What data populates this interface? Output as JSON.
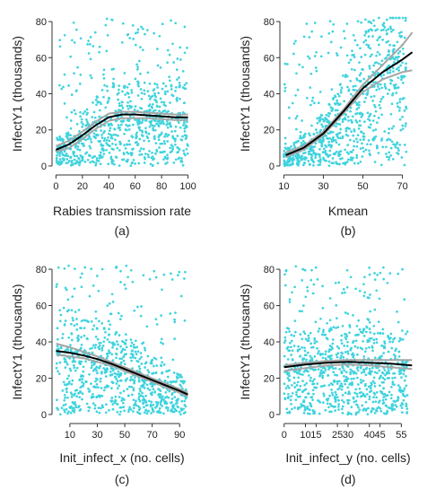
{
  "colors": {
    "points": "#3fd3de",
    "fit": "#000000",
    "confidence_band": "#a6a6a6",
    "axis": "#333333"
  },
  "chart_data": [
    {
      "type": "scatter",
      "panel": "(a)",
      "xlabel": "Rabies transmission rate",
      "ylabel": "InfectY1 (thousands)",
      "xlim": [
        -3,
        103
      ],
      "ylim": [
        -3,
        83
      ],
      "xticks": [
        0,
        20,
        40,
        60,
        80,
        100
      ],
      "yticks": [
        0,
        20,
        40,
        60,
        80
      ],
      "point_count": 900,
      "points_x_range": [
        0,
        100
      ],
      "fit_line": {
        "x": [
          0,
          10,
          20,
          30,
          40,
          50,
          60,
          70,
          80,
          90,
          100
        ],
        "y": [
          9,
          12,
          17,
          22.5,
          27,
          28.5,
          28.5,
          28,
          27.5,
          27,
          27
        ]
      },
      "band_upper": {
        "x": [
          0,
          10,
          20,
          30,
          40,
          50,
          60,
          70,
          80,
          90,
          100
        ],
        "y": [
          11,
          14,
          19,
          24.5,
          29,
          30,
          30,
          29.5,
          29,
          28.5,
          28.5
        ]
      },
      "band_lower": {
        "x": [
          0,
          10,
          20,
          30,
          40,
          50,
          60,
          70,
          80,
          90,
          100
        ],
        "y": [
          8,
          10,
          15,
          20.5,
          25,
          26.5,
          26.5,
          26.5,
          26,
          25.5,
          25.5
        ]
      }
    },
    {
      "type": "scatter",
      "panel": "(b)",
      "xlabel": "Kmean",
      "ylabel": "InfectY1 (thousands)",
      "xlim": [
        8,
        77
      ],
      "ylim": [
        -3,
        83
      ],
      "xticks": [
        10,
        30,
        50,
        70
      ],
      "yticks": [
        0,
        20,
        40,
        60,
        80
      ],
      "point_count": 900,
      "points_x_range": [
        10,
        72
      ],
      "fit_line": {
        "x": [
          11,
          20,
          30,
          40,
          50,
          60,
          70,
          75
        ],
        "y": [
          6,
          10,
          18,
          30,
          43,
          52,
          59,
          63
        ]
      },
      "band_upper": {
        "x": [
          11,
          20,
          30,
          40,
          50,
          60,
          70,
          75
        ],
        "y": [
          7.5,
          11,
          19,
          31,
          45,
          56,
          67,
          74
        ]
      },
      "band_lower": {
        "x": [
          11,
          20,
          30,
          40,
          50,
          60,
          70,
          75
        ],
        "y": [
          5,
          9,
          17,
          29,
          41,
          48,
          52,
          53
        ]
      }
    },
    {
      "type": "scatter",
      "panel": "(c)",
      "xlabel": "Init_infect_x (no. cells)",
      "ylabel": "InfectY1 (thousands)",
      "xlim": [
        -3,
        99
      ],
      "ylim": [
        -3,
        83
      ],
      "xticks": [
        10,
        30,
        50,
        70,
        90
      ],
      "yticks": [
        0,
        20,
        40,
        60,
        80
      ],
      "point_count": 900,
      "points_x_range": [
        0,
        95
      ],
      "fit_line": {
        "x": [
          0,
          10,
          20,
          30,
          40,
          50,
          60,
          70,
          80,
          90,
          96
        ],
        "y": [
          35,
          34,
          32.5,
          30.5,
          28,
          25,
          22,
          19,
          16,
          13,
          11
        ]
      },
      "band_upper": {
        "x": [
          0,
          10,
          20,
          30,
          40,
          50,
          60,
          70,
          80,
          90,
          96
        ],
        "y": [
          39,
          37,
          34.5,
          32,
          29,
          26,
          23,
          20,
          17,
          14,
          12
        ]
      },
      "band_lower": {
        "x": [
          0,
          10,
          20,
          30,
          40,
          50,
          60,
          70,
          80,
          90,
          96
        ],
        "y": [
          33,
          32,
          31,
          29,
          27,
          24,
          21,
          18,
          15,
          12,
          10
        ]
      }
    },
    {
      "type": "scatter",
      "panel": "(d)",
      "xlabel": "Init_infect_y (no. cells)",
      "ylabel": "InfectY1 (thousands)",
      "xlim": [
        -2,
        62
      ],
      "ylim": [
        -3,
        83
      ],
      "xticks": [
        0,
        10,
        15,
        25,
        30,
        40,
        45,
        55
      ],
      "yticks": [
        0,
        20,
        40,
        60,
        80
      ],
      "point_count": 900,
      "points_x_range": [
        0,
        58
      ],
      "fit_line": {
        "x": [
          0,
          10,
          20,
          30,
          40,
          50,
          60
        ],
        "y": [
          26,
          27.5,
          28.5,
          29,
          28.5,
          28,
          27
        ]
      },
      "band_upper": {
        "x": [
          0,
          10,
          20,
          30,
          40,
          50,
          60
        ],
        "y": [
          27,
          28.5,
          29.5,
          30,
          30,
          30,
          30
        ]
      },
      "band_lower": {
        "x": [
          0,
          10,
          20,
          30,
          40,
          50,
          60
        ],
        "y": [
          24,
          25.5,
          27,
          27.5,
          27,
          26,
          25
        ]
      }
    }
  ]
}
